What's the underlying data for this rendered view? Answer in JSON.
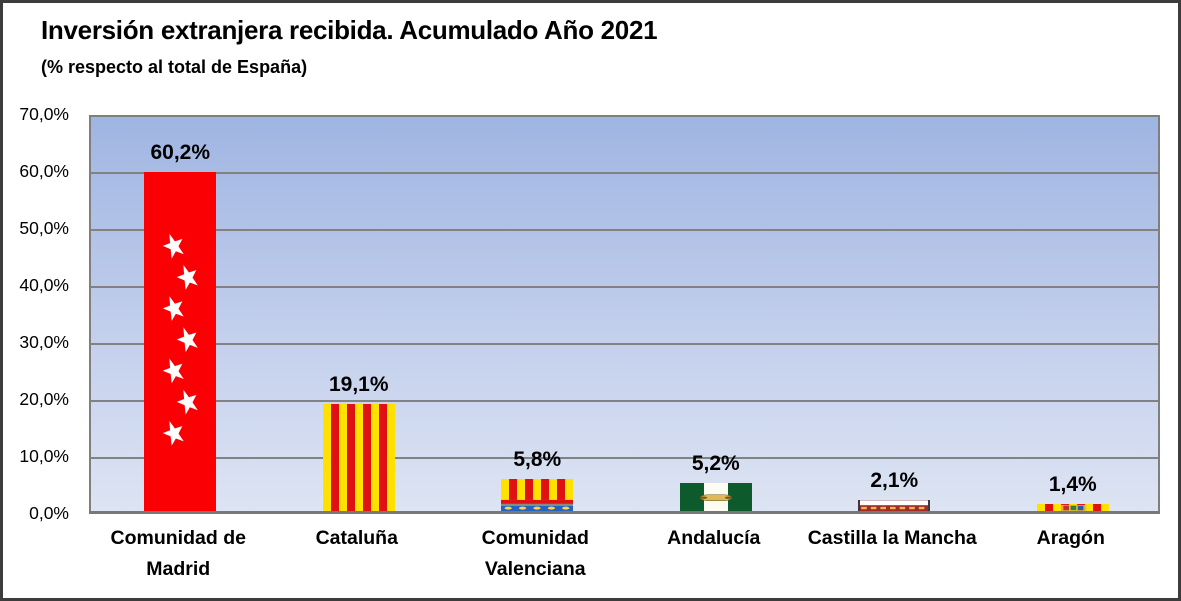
{
  "title": "Inversión extranjera recibida. Acumulado Año 2021",
  "subtitle": "(% respecto al total de España)",
  "chart_data": {
    "type": "bar",
    "title": "Inversión extranjera recibida. Acumulado Año 2021",
    "subtitle": "(% respecto al total de España)",
    "categories": [
      "Comunidad de Madrid",
      "Cataluña",
      "Comunidad Valenciana",
      "Andalucía",
      "Castilla la Mancha",
      "Aragón"
    ],
    "values": [
      60.2,
      19.1,
      5.8,
      5.2,
      2.1,
      1.4
    ],
    "value_labels": [
      "60,2%",
      "19,1%",
      "5,8%",
      "5,2%",
      "2,1%",
      "1,4%"
    ],
    "y_tick_labels": [
      "70,0%",
      "60,0%",
      "50,0%",
      "40,0%",
      "30,0%",
      "20,0%",
      "10,0%",
      "0,0%"
    ],
    "ylabel": "",
    "xlabel": "",
    "ylim": [
      0,
      70
    ],
    "y_step": 10,
    "grid": true,
    "legend": false,
    "bar_fill_style": "regional-flag-patterns",
    "bar_flags": [
      "flag-comunidad-de-madrid",
      "flag-cataluna",
      "flag-comunidad-valenciana",
      "flag-andalucia",
      "flag-castilla-la-mancha",
      "flag-aragon"
    ]
  },
  "colors": {
    "frame_border": "#3c3c3c",
    "plot_bg_top": "#9fb5e2",
    "plot_bg_bottom": "#dde4f3",
    "gridline": "#828282",
    "axis_line": "#787878",
    "madrid_red": "#fa0005",
    "madrid_star_white": "#ffffff",
    "senyera_yellow": "#ffe100",
    "senyera_red": "#e01112",
    "valencia_blue": "#2563be",
    "valencia_gold": "#ffd34d",
    "andalusia_green": "#0d5b2c",
    "andalusia_white": "#fcfcf2",
    "castilla_crimson": "#a3292b",
    "castilla_gold": "#efb93f",
    "aragon_emblem_gold": "#d8c24a"
  }
}
